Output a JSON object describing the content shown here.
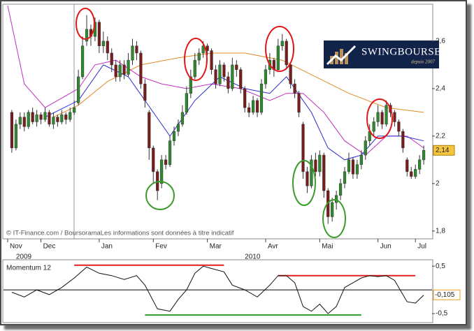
{
  "chart_data": [
    {
      "type": "candlestick",
      "open": [
        2.3,
        2.15,
        2.25,
        2.28,
        2.24,
        2.3,
        2.26,
        2.29,
        2.27,
        2.3,
        2.25,
        2.28,
        2.26,
        2.29,
        2.27,
        2.3,
        2.34,
        2.45,
        2.6,
        2.65,
        2.62,
        2.68,
        2.58,
        2.6,
        2.55,
        2.5,
        2.45,
        2.5,
        2.46,
        2.52,
        2.58,
        2.55,
        2.42,
        2.3,
        2.15,
        2.05,
        2.0,
        2.1,
        2.08,
        2.18,
        2.22,
        2.25,
        2.3,
        2.38,
        2.45,
        2.52,
        2.55,
        2.58,
        2.56,
        2.48,
        2.42,
        2.5,
        2.45,
        2.4,
        2.5,
        2.48,
        2.4,
        2.32,
        2.3,
        2.35,
        2.3,
        2.42,
        2.48,
        2.52,
        2.48,
        2.58,
        2.6,
        2.5,
        2.42,
        2.38,
        2.25,
        2.05,
        1.99,
        2.1,
        2.05,
        2.12,
        1.97,
        1.86,
        1.92,
        1.95,
        2.0,
        2.05,
        2.1,
        2.04,
        2.08,
        2.12,
        2.18,
        2.22,
        2.26,
        2.3,
        2.25,
        2.33,
        2.3,
        2.26,
        2.22,
        2.1,
        2.05,
        2.03,
        2.06,
        2.1
      ],
      "high": [
        2.31,
        2.27,
        2.3,
        2.3,
        2.31,
        2.32,
        2.31,
        2.3,
        2.32,
        2.31,
        2.3,
        2.29,
        2.31,
        2.3,
        2.32,
        2.35,
        2.48,
        2.62,
        2.71,
        2.67,
        2.7,
        2.69,
        2.64,
        2.62,
        2.57,
        2.52,
        2.52,
        2.52,
        2.55,
        2.61,
        2.6,
        2.56,
        2.44,
        2.31,
        2.16,
        2.06,
        2.12,
        2.12,
        2.2,
        2.24,
        2.27,
        2.33,
        2.41,
        2.48,
        2.55,
        2.57,
        2.6,
        2.59,
        2.57,
        2.5,
        2.52,
        2.51,
        2.47,
        2.53,
        2.52,
        2.49,
        2.41,
        2.34,
        2.37,
        2.36,
        2.44,
        2.5,
        2.55,
        2.53,
        2.61,
        2.63,
        2.61,
        2.51,
        2.44,
        2.39,
        2.26,
        2.07,
        2.12,
        2.13,
        2.14,
        2.13,
        1.98,
        1.94,
        1.97,
        2.02,
        2.07,
        2.13,
        2.11,
        2.1,
        2.14,
        2.2,
        2.25,
        2.28,
        2.33,
        2.31,
        2.35,
        2.34,
        2.31,
        2.27,
        2.23,
        2.11,
        2.07,
        2.08,
        2.12,
        2.16
      ],
      "low": [
        2.13,
        2.14,
        2.23,
        2.22,
        2.23,
        2.25,
        2.24,
        2.25,
        2.26,
        2.24,
        2.23,
        2.24,
        2.25,
        2.25,
        2.26,
        2.29,
        2.33,
        2.44,
        2.58,
        2.58,
        2.6,
        2.55,
        2.55,
        2.52,
        2.47,
        2.43,
        2.43,
        2.44,
        2.45,
        2.5,
        2.52,
        2.4,
        2.32,
        2.1,
        2.0,
        1.93,
        1.98,
        2.06,
        2.07,
        2.16,
        2.2,
        2.24,
        2.29,
        2.36,
        2.44,
        2.5,
        2.53,
        2.54,
        2.46,
        2.4,
        2.41,
        2.43,
        2.38,
        2.39,
        2.45,
        2.38,
        2.3,
        2.28,
        2.29,
        2.28,
        2.29,
        2.4,
        2.46,
        2.45,
        2.47,
        2.56,
        2.48,
        2.4,
        2.36,
        2.28,
        2.02,
        1.96,
        1.98,
        2.03,
        2.03,
        1.94,
        1.83,
        1.84,
        1.89,
        1.93,
        1.98,
        2.04,
        2.02,
        2.02,
        2.06,
        2.1,
        2.16,
        2.2,
        2.24,
        2.23,
        2.24,
        2.28,
        2.24,
        2.2,
        2.13,
        2.03,
        2.02,
        2.02,
        2.04,
        2.08
      ],
      "close": [
        2.15,
        2.25,
        2.28,
        2.24,
        2.3,
        2.26,
        2.29,
        2.27,
        2.3,
        2.25,
        2.28,
        2.26,
        2.29,
        2.27,
        2.3,
        2.32,
        2.45,
        2.58,
        2.65,
        2.62,
        2.68,
        2.58,
        2.6,
        2.55,
        2.5,
        2.45,
        2.5,
        2.46,
        2.52,
        2.58,
        2.55,
        2.42,
        2.35,
        2.15,
        2.05,
        1.97,
        2.1,
        2.08,
        2.18,
        2.22,
        2.25,
        2.3,
        2.38,
        2.45,
        2.52,
        2.55,
        2.58,
        2.56,
        2.48,
        2.42,
        2.5,
        2.45,
        2.4,
        2.5,
        2.48,
        2.4,
        2.32,
        2.3,
        2.35,
        2.3,
        2.42,
        2.48,
        2.52,
        2.48,
        2.58,
        2.6,
        2.5,
        2.42,
        2.38,
        2.3,
        2.05,
        1.99,
        2.1,
        2.05,
        2.12,
        1.97,
        1.86,
        1.92,
        1.95,
        2.0,
        2.05,
        2.1,
        2.04,
        2.08,
        2.12,
        2.18,
        2.22,
        2.26,
        2.3,
        2.25,
        2.33,
        2.3,
        2.26,
        2.22,
        2.15,
        2.05,
        2.03,
        2.06,
        2.1,
        2.14
      ],
      "up_color": "#2d8a2d",
      "down_color": "#7a1c1c",
      "lines": [
        {
          "color": "#e08a2a",
          "x": [
            10,
            16,
            23,
            31,
            40,
            48,
            56,
            65,
            73,
            81,
            90,
            99
          ],
          "values": [
            2.28,
            2.33,
            2.43,
            2.5,
            2.53,
            2.55,
            2.55,
            2.52,
            2.45,
            2.38,
            2.32,
            2.3
          ]
        },
        {
          "color": "#c030c0",
          "x": [
            -1,
            3,
            8,
            16,
            20,
            25,
            31,
            36,
            42,
            48,
            55,
            62,
            66,
            70,
            75,
            80,
            85,
            90,
            95,
            99
          ],
          "values": [
            2.75,
            2.42,
            2.32,
            2.4,
            2.5,
            2.52,
            2.45,
            2.42,
            2.4,
            2.42,
            2.4,
            2.35,
            2.38,
            2.38,
            2.3,
            2.18,
            2.12,
            2.2,
            2.2,
            2.15
          ]
        },
        {
          "color": "#2a2ad0",
          "x": [
            8,
            16,
            22,
            28,
            34,
            38,
            44,
            50,
            56,
            62,
            66,
            72,
            76,
            80,
            84,
            88,
            94,
            99
          ],
          "values": [
            2.28,
            2.35,
            2.5,
            2.45,
            2.3,
            2.2,
            2.35,
            2.45,
            2.4,
            2.38,
            2.45,
            2.3,
            2.15,
            2.1,
            2.12,
            2.2,
            2.2,
            2.18
          ]
        }
      ],
      "xlim": [
        -2,
        101
      ],
      "xticks": [
        {
          "value": -1,
          "label": "Nov"
        },
        {
          "value": 7,
          "label": "Dec"
        },
        {
          "value": 21,
          "label": "Jan"
        },
        {
          "value": 34,
          "label": "Fev"
        },
        {
          "value": 47,
          "label": "Mar"
        },
        {
          "value": 61,
          "label": "Avr"
        },
        {
          "value": 74,
          "label": "Mai"
        },
        {
          "value": 88,
          "label": "Jun"
        },
        {
          "value": 97,
          "label": "Jul"
        }
      ],
      "year_ticks": [
        {
          "value": 1,
          "label": "2009"
        },
        {
          "value": 56,
          "label": "2010"
        }
      ],
      "ylim": [
        1.77,
        2.75
      ],
      "yticks": [
        {
          "value": 1.8,
          "label": "1,8"
        },
        2,
        {
          "value": 2.2,
          "label": "2,2"
        },
        {
          "value": 2.4,
          "label": "2,4"
        },
        {
          "value": 2.6,
          "label": "2,6"
        }
      ],
      "last_value": {
        "value": 2.14,
        "label": "2,14"
      },
      "source": "© IT-Finance.com / BoursoramaLes informations sont données à titre indicatif"
    },
    {
      "type": "line",
      "title": "Momentum 12",
      "color": "#111111",
      "x": [
        0,
        3,
        6,
        9,
        12,
        15,
        18,
        21,
        24,
        27,
        30,
        32,
        35,
        38,
        40,
        42,
        44,
        46,
        48,
        51,
        53,
        56,
        59,
        62,
        64,
        66,
        68,
        70,
        72,
        74,
        76,
        78,
        80,
        82,
        84,
        86,
        88,
        90,
        92,
        94,
        95,
        97,
        99
      ],
      "values": [
        -0.05,
        -0.15,
        0.0,
        -0.1,
        0.05,
        0.25,
        0.48,
        0.35,
        0.3,
        0.22,
        0.3,
        0.1,
        -0.4,
        -0.45,
        -0.2,
        0.0,
        0.35,
        0.5,
        0.45,
        0.38,
        0.1,
        0.0,
        -0.15,
        0.1,
        0.3,
        0.3,
        0.15,
        -0.35,
        -0.45,
        -0.3,
        -0.5,
        -0.35,
        0.05,
        0.15,
        0.25,
        0.3,
        0.28,
        0.3,
        0.2,
        -0.1,
        -0.25,
        -0.28,
        -0.11
      ],
      "xlim": [
        -2,
        101
      ],
      "ylim": [
        -0.69,
        0.62
      ],
      "yticks": [
        {
          "value": -0.5,
          "label": "-0,5"
        },
        {
          "value": 0.5,
          "label": "0,5"
        }
      ],
      "reference_lines": [
        {
          "color": "#e02020",
          "x": [
            15,
            51
          ],
          "value": 0.52
        },
        {
          "color": "#e02020",
          "x": [
            64,
            97
          ],
          "value": 0.3
        },
        {
          "color": "#2e9a2e",
          "x": [
            32,
            84
          ],
          "value": -0.53
        }
      ],
      "last_value": {
        "value": -0.105,
        "label": "-0,105"
      }
    }
  ],
  "logo": {
    "name": "SWINGBOURSE",
    "tagline": "depuis 2007"
  }
}
